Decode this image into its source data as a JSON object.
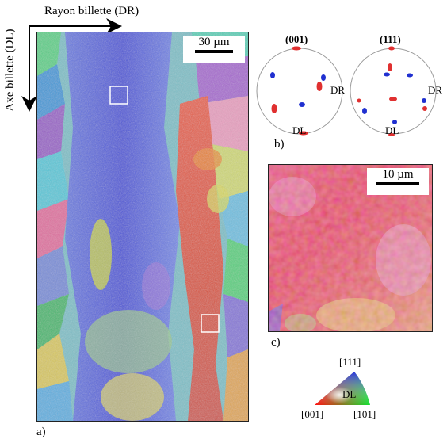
{
  "axes": {
    "horizontal_label": "Rayon billette  (DR)",
    "vertical_label": "Axe billette  (DL)"
  },
  "panel_a": {
    "label": "a)",
    "scale_bar": "30 µm"
  },
  "panel_b": {
    "label": "b)",
    "pole_figures": [
      {
        "title": "(001)",
        "right_label": "DR",
        "bottom_label": "DL"
      },
      {
        "title": "(111)",
        "right_label": "DR",
        "bottom_label": "DL"
      }
    ]
  },
  "panel_c": {
    "label": "c)",
    "scale_bar": "10 µm"
  },
  "legend": {
    "top": "[111]",
    "center": "DL",
    "left": "[001]",
    "right": "[101]"
  },
  "colors": {
    "ipf_red": "#e8413a",
    "ipf_blue": "#2030d0",
    "ipf_green": "#40d050"
  }
}
